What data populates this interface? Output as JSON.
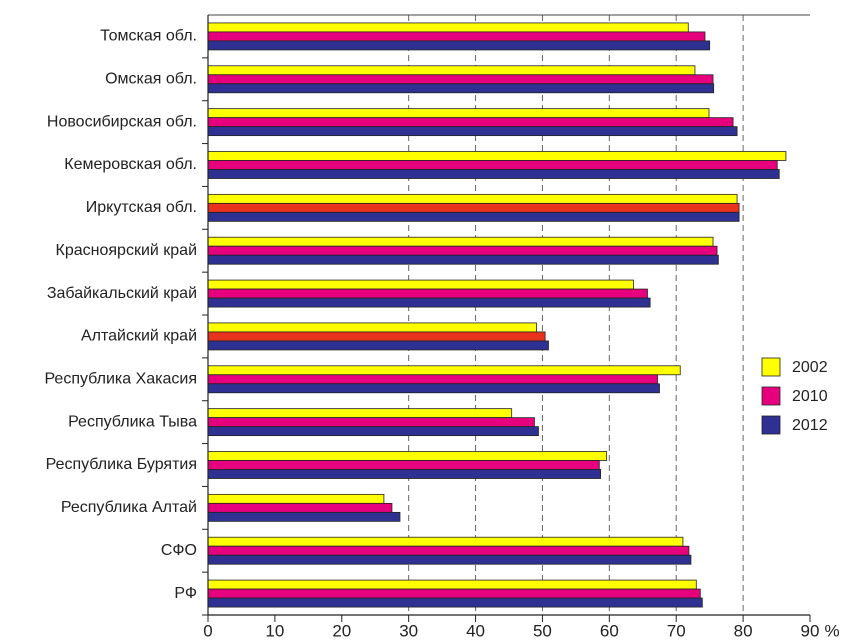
{
  "chart_data": {
    "type": "bar",
    "orientation": "horizontal",
    "categories": [
      "Томская обл.",
      "Омская обл.",
      "Новосибирская обл.",
      "Кемеровская обл.",
      "Иркутская обл.",
      "Красноярский край",
      "Забайкальский край",
      "Алтайский край",
      "Республика Хакасия",
      "Республика Тыва",
      "Республика Бурятия",
      "Республика Алтай",
      "СФО",
      "РФ"
    ],
    "series": [
      {
        "name": "2002",
        "color": "#ffff00",
        "values": [
          71.8,
          72.8,
          74.9,
          86.4,
          79.1,
          75.5,
          63.6,
          49.1,
          70.6,
          45.4,
          59.6,
          26.3,
          71.0,
          73.0
        ]
      },
      {
        "name": "2010",
        "color": "#e6007e",
        "values": [
          74.3,
          75.5,
          78.5,
          85.1,
          79.4,
          76.1,
          65.7,
          50.4,
          67.2,
          48.8,
          58.5,
          27.5,
          71.9,
          73.6
        ],
        "colors": [
          "#e6007e",
          "#e6007e",
          "#e6007e",
          "#e6007e",
          "#e8321e",
          "#e6007e",
          "#e6007e",
          "#e8321e",
          "#e6007e",
          "#e6007e",
          "#e6007e",
          "#e6007e",
          "#e6007e",
          "#e6007e"
        ]
      },
      {
        "name": "2012",
        "color": "#2e3192",
        "values": [
          75.0,
          75.6,
          79.1,
          85.4,
          79.4,
          76.3,
          66.1,
          50.9,
          67.5,
          49.4,
          58.7,
          28.7,
          72.2,
          73.9
        ]
      }
    ],
    "xlabel": "%",
    "xlim": [
      0,
      90
    ],
    "xticks": [
      0,
      10,
      20,
      30,
      40,
      50,
      60,
      70,
      80,
      90
    ],
    "grid_ticks": [
      30,
      40,
      50,
      60,
      70,
      80
    ],
    "legend": "right"
  }
}
